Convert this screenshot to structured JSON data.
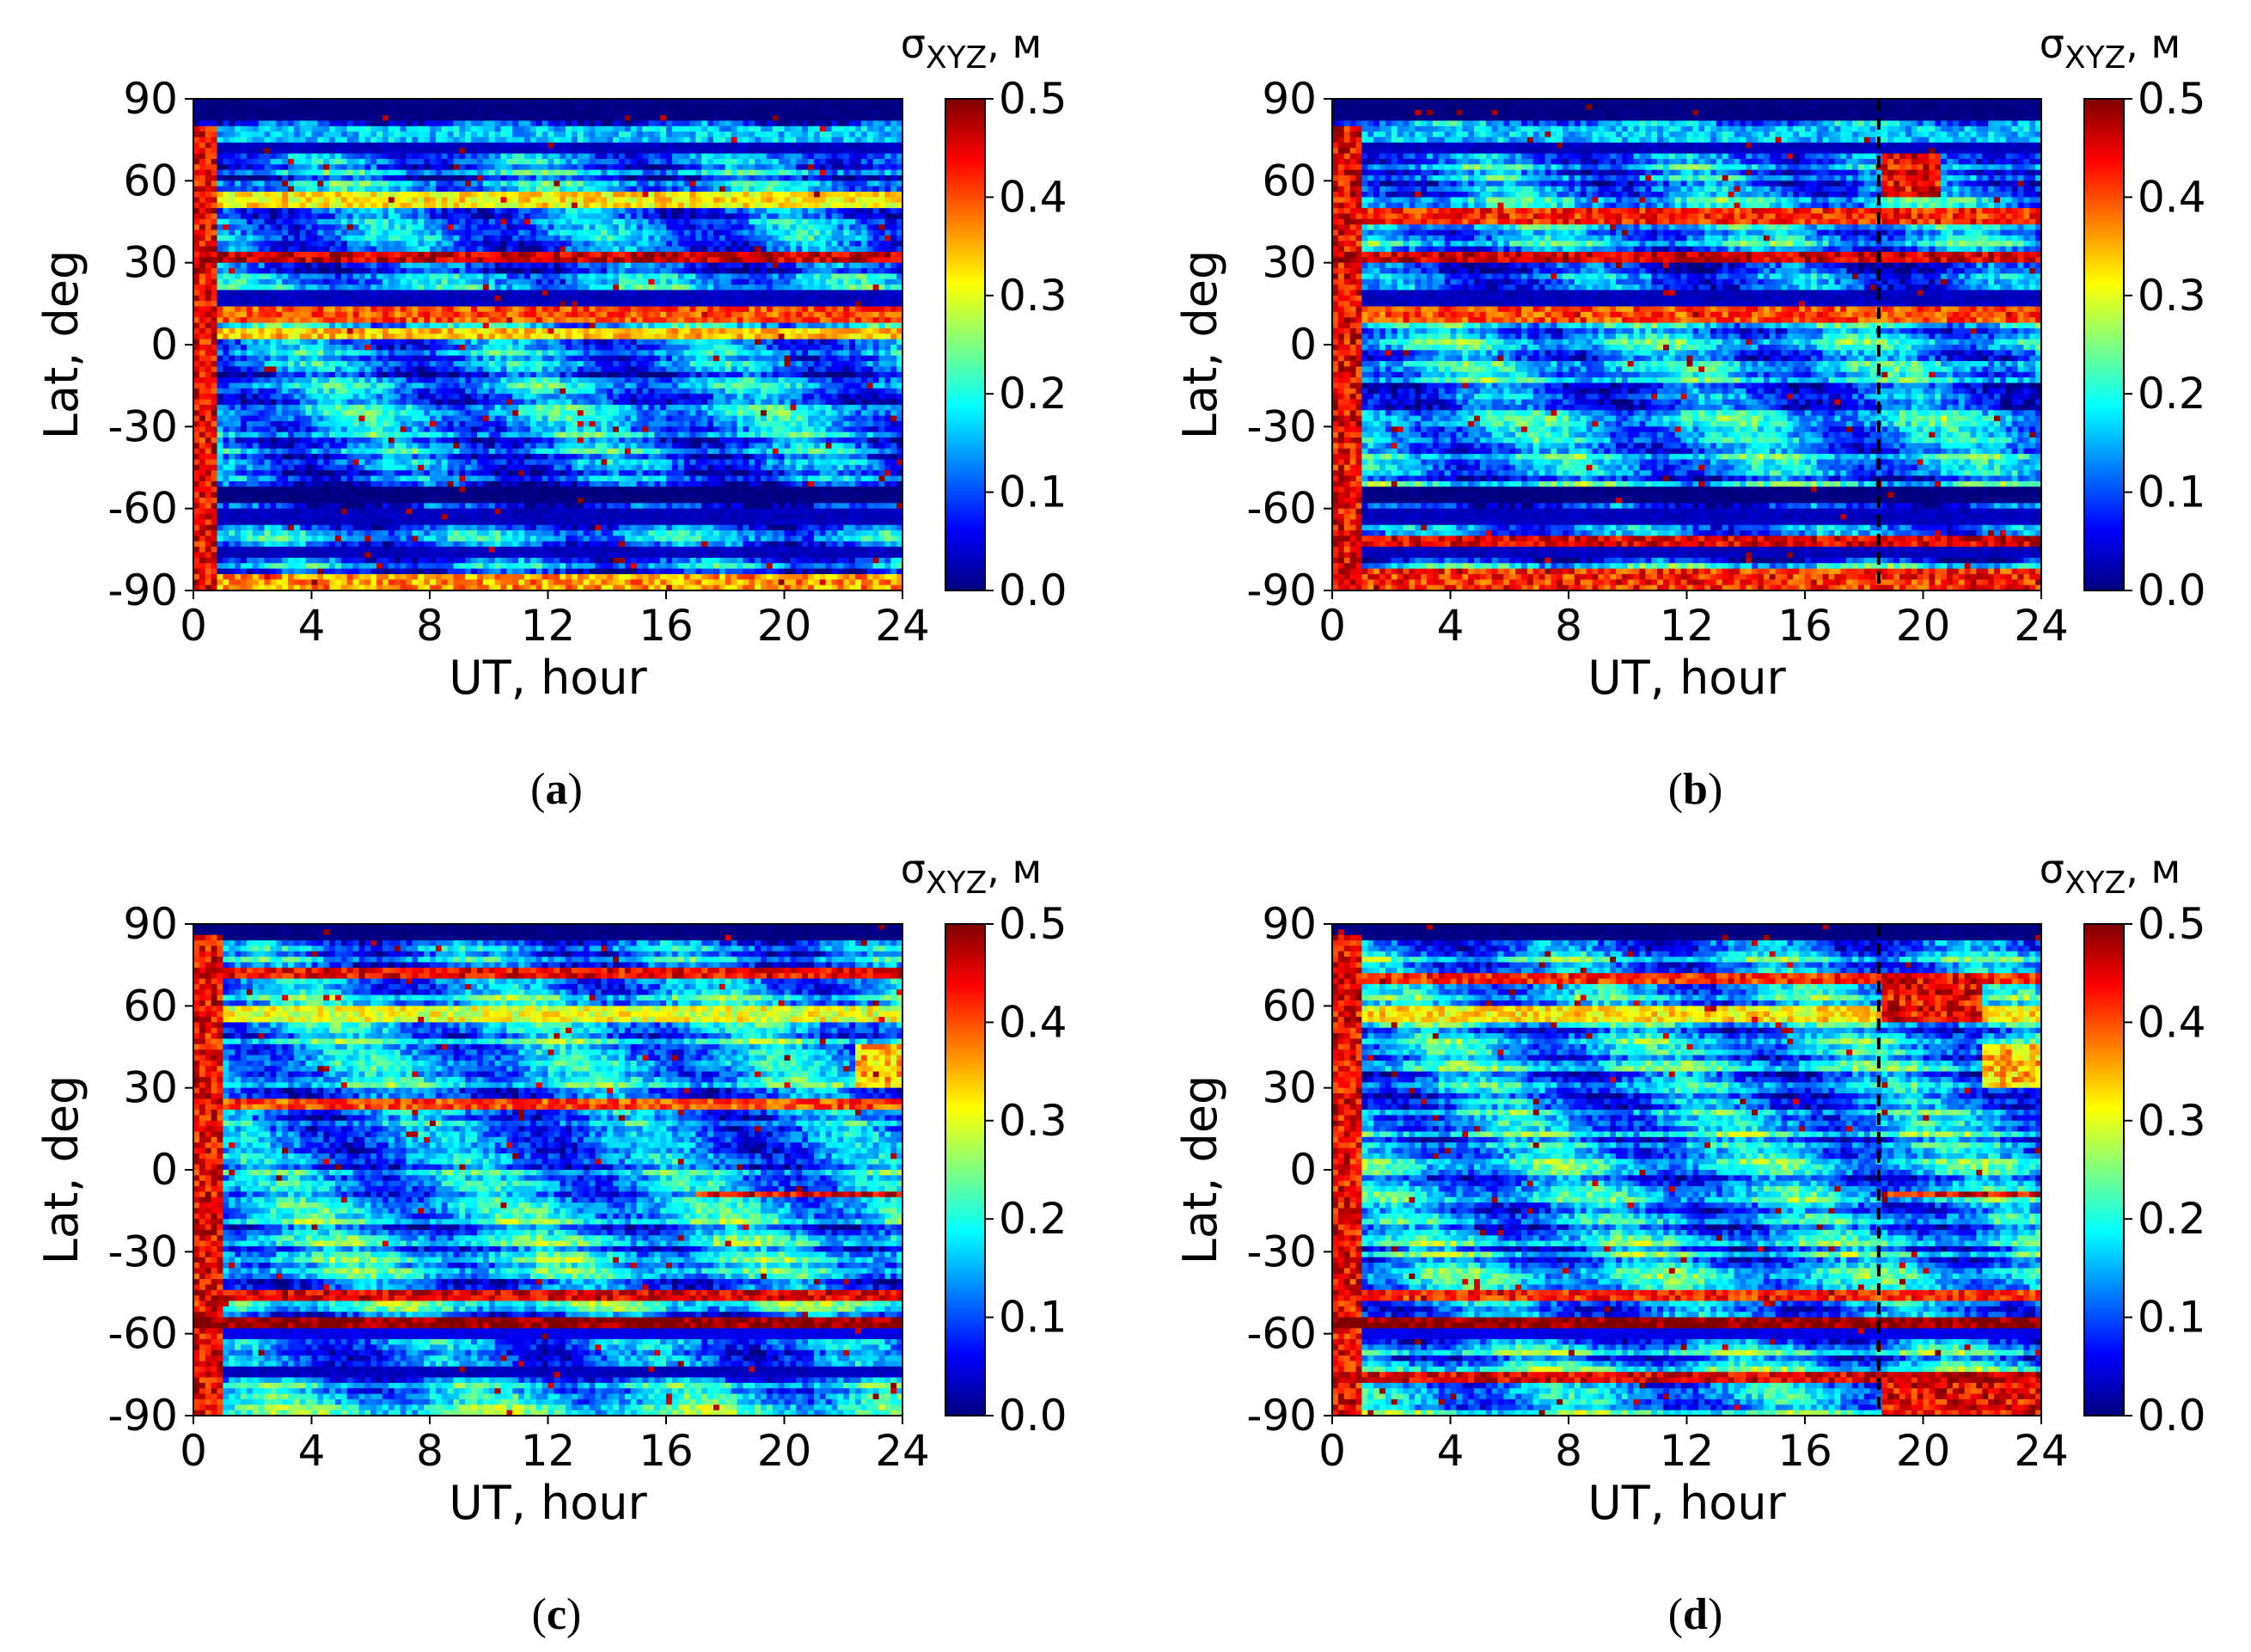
{
  "figure": {
    "panels_order": [
      "a",
      "b",
      "c",
      "d"
    ]
  },
  "colorscale": {
    "stops": [
      "#00007f",
      "#0000ff",
      "#007fff",
      "#00ffff",
      "#7fff7f",
      "#ffff00",
      "#ff7f00",
      "#ff0000",
      "#7f0000"
    ]
  },
  "chart_data": [
    {
      "type": "heatmap",
      "panel": "a",
      "caption": {
        "open": "(",
        "letter": "a",
        "close": ")"
      },
      "xlabel": "UT, hour",
      "ylabel": "Lat, deg",
      "xlim": [
        0,
        24
      ],
      "ylim": [
        -90,
        90
      ],
      "xticks": [
        "0",
        "4",
        "8",
        "12",
        "16",
        "20",
        "24"
      ],
      "yticks": [
        "90",
        "60",
        "30",
        "0",
        "-30",
        "-60",
        "-90"
      ],
      "colorbar": {
        "label_main": "σ",
        "label_sub": "XYZ",
        "label_unit": ", м",
        "range": [
          0.0,
          0.5
        ],
        "ticks": [
          "0.5",
          "0.4",
          "0.3",
          "0.2",
          "0.1",
          "0.0"
        ]
      },
      "marker_line_ut": null,
      "value_range": [
        0.0,
        0.5
      ],
      "seed": 11,
      "bands": [
        {
          "lat": [
            82,
            90
          ],
          "value": 0.0
        },
        {
          "lat": [
            75,
            79
          ],
          "value": 0.16
        },
        {
          "lat": [
            70,
            74
          ],
          "value": 0.03
        },
        {
          "lat": [
            50,
            56
          ],
          "value": 0.32
        },
        {
          "lat": [
            30,
            34
          ],
          "value": 0.46
        },
        {
          "lat": [
            15,
            19
          ],
          "value": 0.03
        },
        {
          "lat": [
            8,
            13
          ],
          "value": 0.4
        },
        {
          "lat": [
            2,
            6
          ],
          "value": 0.34
        },
        {
          "lat": [
            -58,
            -52
          ],
          "value": 0.0
        },
        {
          "lat": [
            -65,
            -60
          ],
          "value": 0.03
        },
        {
          "lat": [
            -78,
            -75
          ],
          "value": 0.03
        }
      ],
      "hotspots": [
        {
          "ut": [
            0,
            0.8
          ],
          "lat": [
            -90,
            80
          ],
          "value": 0.5
        },
        {
          "ut": [
            0,
            24
          ],
          "lat": [
            -90,
            -84
          ],
          "value": 0.42
        }
      ],
      "base_level": 0.12
    },
    {
      "type": "heatmap",
      "panel": "b",
      "caption": {
        "open": "(",
        "letter": "b",
        "close": ")"
      },
      "xlabel": "UT, hour",
      "ylabel": "Lat, deg",
      "xlim": [
        0,
        24
      ],
      "ylim": [
        -90,
        90
      ],
      "xticks": [
        "0",
        "4",
        "8",
        "12",
        "16",
        "20",
        "24"
      ],
      "yticks": [
        "90",
        "60",
        "30",
        "0",
        "-30",
        "-60",
        "-90"
      ],
      "colorbar": {
        "label_main": "σ",
        "label_sub": "XYZ",
        "label_unit": ", м",
        "range": [
          0.0,
          0.5
        ],
        "ticks": [
          "0.5",
          "0.4",
          "0.3",
          "0.2",
          "0.1",
          "0.0"
        ]
      },
      "marker_line_ut": 18.5,
      "value_range": [
        0.0,
        0.5
      ],
      "seed": 23,
      "bands": [
        {
          "lat": [
            82,
            90
          ],
          "value": 0.0
        },
        {
          "lat": [
            75,
            79
          ],
          "value": 0.16
        },
        {
          "lat": [
            70,
            74
          ],
          "value": 0.03
        },
        {
          "lat": [
            45,
            50
          ],
          "value": 0.42
        },
        {
          "lat": [
            30,
            34
          ],
          "value": 0.46
        },
        {
          "lat": [
            15,
            19
          ],
          "value": 0.03
        },
        {
          "lat": [
            8,
            13
          ],
          "value": 0.4
        },
        {
          "lat": [
            -58,
            -52
          ],
          "value": 0.0
        },
        {
          "lat": [
            -65,
            -60
          ],
          "value": 0.03
        },
        {
          "lat": [
            -74,
            -70
          ],
          "value": 0.45
        },
        {
          "lat": [
            -78,
            -75
          ],
          "value": 0.03
        }
      ],
      "hotspots": [
        {
          "ut": [
            0,
            1.0
          ],
          "lat": [
            -90,
            80
          ],
          "value": 0.5
        },
        {
          "ut": [
            0,
            24
          ],
          "lat": [
            -90,
            -82
          ],
          "value": 0.48
        },
        {
          "ut": [
            18.6,
            20.5
          ],
          "lat": [
            55,
            70
          ],
          "value": 0.5
        }
      ],
      "base_level": 0.13
    },
    {
      "type": "heatmap",
      "panel": "c",
      "caption": {
        "open": "(",
        "letter": "c",
        "close": ")"
      },
      "xlabel": "UT, hour",
      "ylabel": "Lat, deg",
      "xlim": [
        0,
        24
      ],
      "ylim": [
        -90,
        90
      ],
      "xticks": [
        "0",
        "4",
        "8",
        "12",
        "16",
        "20",
        "24"
      ],
      "yticks": [
        "90",
        "60",
        "30",
        "0",
        "-30",
        "-60",
        "-90"
      ],
      "colorbar": {
        "label_main": "σ",
        "label_sub": "XYZ",
        "label_unit": ", м",
        "range": [
          0.0,
          0.5
        ],
        "ticks": [
          "0.5",
          "0.4",
          "0.3",
          "0.2",
          "0.1",
          "0.0"
        ]
      },
      "marker_line_ut": null,
      "value_range": [
        0.0,
        0.5
      ],
      "seed": 37,
      "bands": [
        {
          "lat": [
            84,
            90
          ],
          "value": 0.0
        },
        {
          "lat": [
            70,
            73
          ],
          "value": 0.44
        },
        {
          "lat": [
            55,
            59
          ],
          "value": 0.3
        },
        {
          "lat": [
            22,
            25
          ],
          "value": 0.4
        },
        {
          "lat": [
            -58,
            -54
          ],
          "value": 0.5
        },
        {
          "lat": [
            -62,
            -59
          ],
          "value": 0.05
        },
        {
          "lat": [
            -48,
            -45
          ],
          "value": 0.45
        },
        {
          "lat": [
            -75,
            -72
          ],
          "value": 0.03
        }
      ],
      "hotspots": [
        {
          "ut": [
            0,
            0.9
          ],
          "lat": [
            -90,
            85
          ],
          "value": 0.5
        },
        {
          "ut": [
            17,
            24
          ],
          "lat": [
            -10,
            -8
          ],
          "value": 0.5
        },
        {
          "ut": [
            22.5,
            24
          ],
          "lat": [
            30,
            45
          ],
          "value": 0.4
        }
      ],
      "base_level": 0.15
    },
    {
      "type": "heatmap",
      "panel": "d",
      "caption": {
        "open": "(",
        "letter": "d",
        "close": ")"
      },
      "xlabel": "UT, hour",
      "ylabel": "Lat, deg",
      "xlim": [
        0,
        24
      ],
      "ylim": [
        -90,
        90
      ],
      "xticks": [
        "0",
        "4",
        "8",
        "12",
        "16",
        "20",
        "24"
      ],
      "yticks": [
        "90",
        "60",
        "30",
        "0",
        "-30",
        "-60",
        "-90"
      ],
      "colorbar": {
        "label_main": "σ",
        "label_sub": "XYZ",
        "label_unit": ", м",
        "range": [
          0.0,
          0.5
        ],
        "ticks": [
          "0.5",
          "0.4",
          "0.3",
          "0.2",
          "0.1",
          "0.0"
        ]
      },
      "marker_line_ut": 18.5,
      "value_range": [
        0.0,
        0.5
      ],
      "seed": 51,
      "bands": [
        {
          "lat": [
            84,
            90
          ],
          "value": 0.0
        },
        {
          "lat": [
            68,
            72
          ],
          "value": 0.42
        },
        {
          "lat": [
            55,
            59
          ],
          "value": 0.32
        },
        {
          "lat": [
            -58,
            -54
          ],
          "value": 0.5
        },
        {
          "lat": [
            -62,
            -59
          ],
          "value": 0.05
        },
        {
          "lat": [
            -48,
            -45
          ],
          "value": 0.42
        },
        {
          "lat": [
            -78,
            -74
          ],
          "value": 0.45
        }
      ],
      "hotspots": [
        {
          "ut": [
            0,
            1.0
          ],
          "lat": [
            -90,
            85
          ],
          "value": 0.5
        },
        {
          "ut": [
            18.6,
            22
          ],
          "lat": [
            55,
            72
          ],
          "value": 0.5
        },
        {
          "ut": [
            18.6,
            24
          ],
          "lat": [
            -90,
            -75
          ],
          "value": 0.5
        },
        {
          "ut": [
            18.6,
            24
          ],
          "lat": [
            -10,
            -8
          ],
          "value": 0.5
        },
        {
          "ut": [
            22,
            24
          ],
          "lat": [
            30,
            45
          ],
          "value": 0.4
        }
      ],
      "base_level": 0.15
    }
  ]
}
